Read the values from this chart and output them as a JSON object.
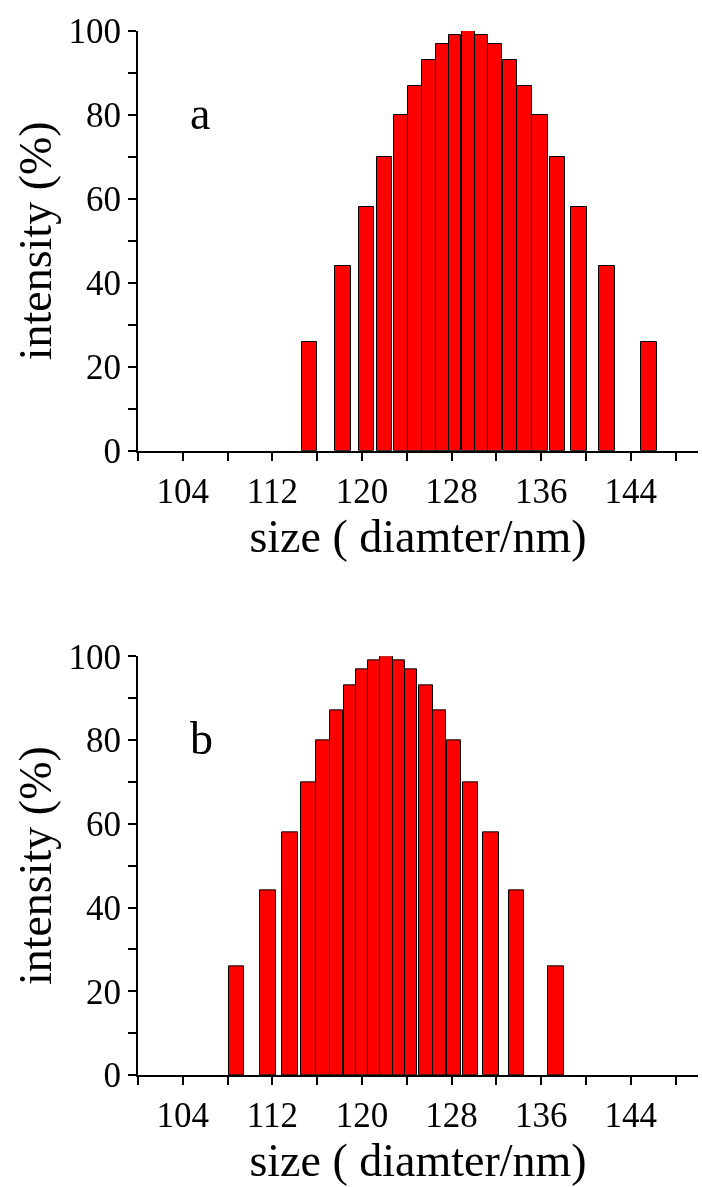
{
  "chart_data": [
    {
      "type": "bar",
      "xlabel": "size ( diamter/nm)",
      "ylabel": "intensity (%)",
      "annotations": [
        "a"
      ],
      "x": [
        115.3,
        118.3,
        120.4,
        122.0,
        123.45,
        124.7,
        126.0,
        127.2,
        128.3,
        129.5,
        130.65,
        131.9,
        133.2,
        134.5,
        135.9,
        137.45,
        139.4,
        141.9,
        145.6
      ],
      "values": [
        26,
        44,
        58,
        70,
        80,
        87,
        93,
        97,
        99,
        100,
        99,
        97,
        93,
        87,
        80,
        70,
        58,
        44,
        26
      ],
      "color": "#ff0000",
      "xlim": [
        100,
        150
      ],
      "xticks": [
        {
          "value": 100,
          "label": null
        },
        104,
        {
          "value": 108,
          "label": null
        },
        112,
        {
          "value": 116,
          "label": null
        },
        120,
        {
          "value": 124,
          "label": null
        },
        128,
        {
          "value": 132,
          "label": null
        },
        136,
        {
          "value": 140,
          "label": null
        },
        144,
        {
          "value": 148,
          "label": null
        }
      ],
      "ylim": [
        0,
        100
      ],
      "yticks": [
        0,
        {
          "value": 10,
          "label": null
        },
        20,
        {
          "value": 30,
          "label": null
        },
        40,
        {
          "value": 50,
          "label": null
        },
        60,
        {
          "value": 70,
          "label": null
        },
        80,
        {
          "value": 90,
          "label": null
        },
        100
      ]
    },
    {
      "type": "bar",
      "xlabel": "size ( diamter/nm)",
      "ylabel": "intensity (%)",
      "annotations": [
        "b"
      ],
      "x": [
        108.8,
        111.6,
        113.6,
        115.2,
        116.5,
        117.7,
        118.9,
        120.0,
        121.1,
        122.2,
        123.3,
        124.4,
        125.7,
        126.9,
        128.2,
        129.7,
        131.5,
        133.8,
        137.3
      ],
      "values": [
        26,
        44,
        58,
        70,
        80,
        87,
        93,
        97,
        99,
        100,
        99,
        97,
        93,
        87,
        80,
        70,
        58,
        44,
        26
      ],
      "color": "#ff0000",
      "xlim": [
        100,
        150
      ],
      "xticks": [
        {
          "value": 100,
          "label": null
        },
        104,
        {
          "value": 108,
          "label": null
        },
        112,
        {
          "value": 116,
          "label": null
        },
        120,
        {
          "value": 124,
          "label": null
        },
        128,
        {
          "value": 132,
          "label": null
        },
        136,
        {
          "value": 140,
          "label": null
        },
        144,
        {
          "value": 148,
          "label": null
        }
      ],
      "ylim": [
        0,
        100
      ],
      "yticks": [
        0,
        {
          "value": 10,
          "label": null
        },
        20,
        {
          "value": 30,
          "label": null
        },
        40,
        {
          "value": 50,
          "label": null
        },
        60,
        {
          "value": 70,
          "label": null
        },
        80,
        {
          "value": 90,
          "label": null
        },
        100
      ]
    }
  ]
}
